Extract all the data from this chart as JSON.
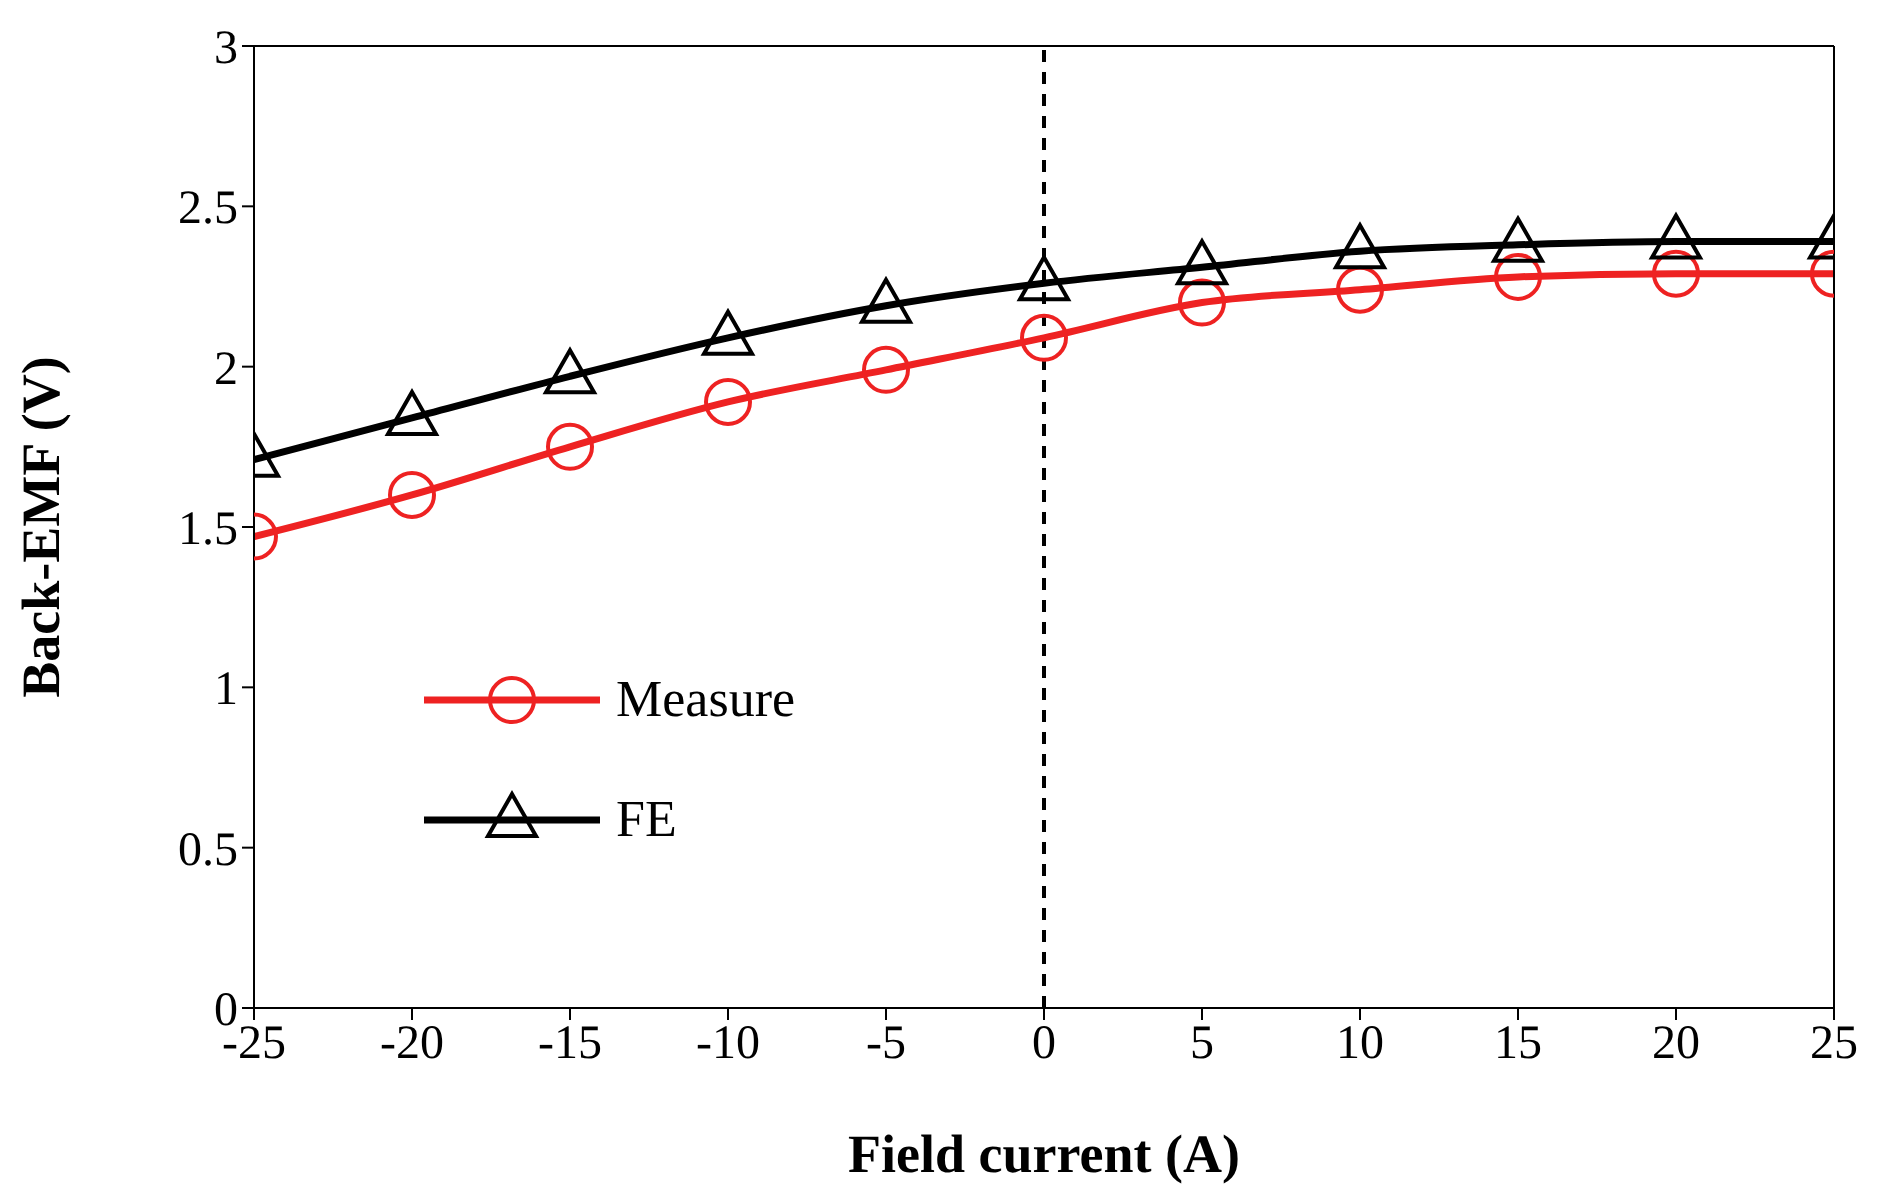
{
  "chart_data": {
    "type": "line",
    "xlabel": "Field current (A)",
    "ylabel": "Back-EMF (V)",
    "x": [
      -25,
      -20,
      -15,
      -10,
      -5,
      0,
      5,
      10,
      15,
      20,
      25
    ],
    "series": [
      {
        "name": "Measure",
        "color": "#ee2222",
        "marker": "circle",
        "values": [
          1.47,
          1.6,
          1.75,
          1.89,
          1.99,
          2.09,
          2.2,
          2.24,
          2.28,
          2.29,
          2.29
        ]
      },
      {
        "name": "FE",
        "color": "#000000",
        "marker": "triangle",
        "values": [
          1.71,
          1.84,
          1.97,
          2.09,
          2.19,
          2.26,
          2.31,
          2.36,
          2.38,
          2.39,
          2.39
        ]
      }
    ],
    "xlim": [
      -25,
      25
    ],
    "xticks": [
      -25,
      -20,
      -15,
      -10,
      -5,
      0,
      5,
      10,
      15,
      20,
      25
    ],
    "ylim": [
      0,
      3
    ],
    "yticks": [
      0,
      0.5,
      1,
      1.5,
      2,
      2.5,
      3
    ],
    "ref_lines": [
      {
        "axis": "x",
        "value": 0,
        "color": "#000000",
        "line_style": "dashed"
      }
    ],
    "grid": false,
    "legend": "left",
    "line_style": "solid"
  }
}
